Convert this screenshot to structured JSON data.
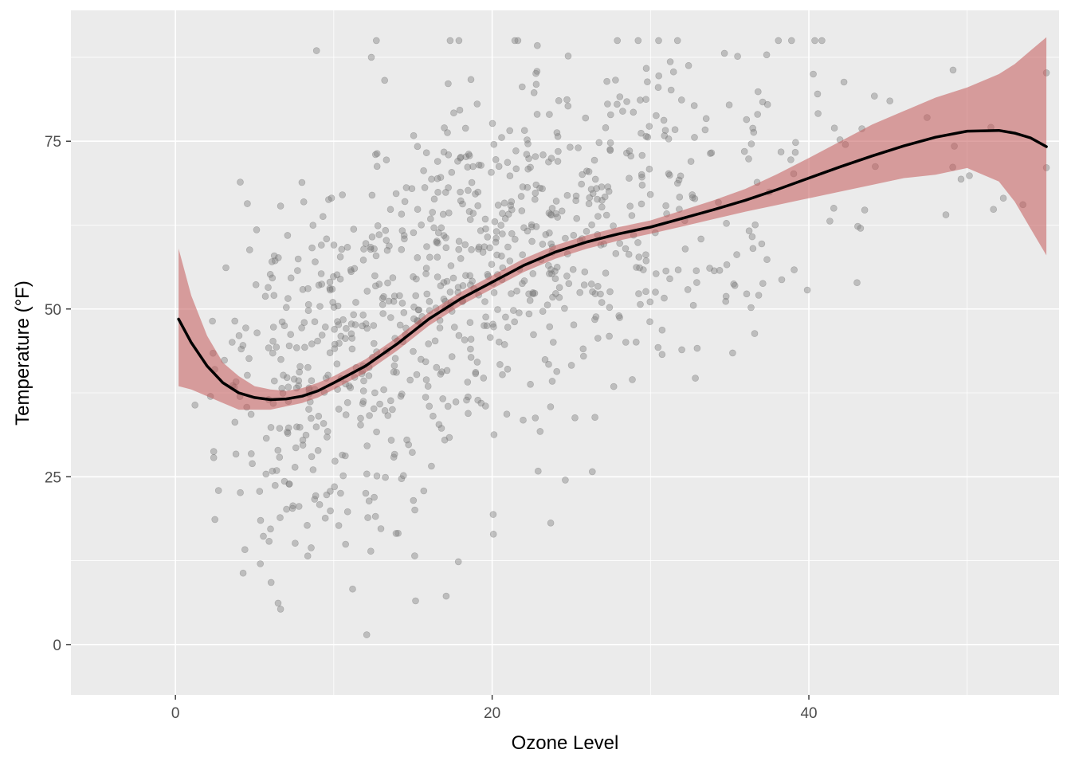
{
  "chart_data": {
    "type": "scatter",
    "xlabel": "Ozone Level",
    "ylabel": "Temperature (°F)",
    "xlim": [
      -6.6,
      55.8
    ],
    "ylim": [
      -7.5,
      94.5
    ],
    "x_ticks": [
      0,
      20,
      40
    ],
    "x_tick_labels": [
      "0",
      "20",
      "40"
    ],
    "x_minor_ticks": [
      10,
      30,
      50
    ],
    "y_ticks": [
      0,
      25,
      50,
      75
    ],
    "y_tick_labels": [
      "0",
      "25",
      "50",
      "75"
    ],
    "y_minor_ticks": [
      12.5,
      37.5,
      62.5,
      87.5
    ],
    "grid": true,
    "legend": "none",
    "colors": {
      "panel_background": "#ebebeb",
      "grid_line": "#ffffff",
      "points": "#7f7f7f",
      "smooth_line": "#000000",
      "confidence_band": "#c45a5a"
    },
    "point_seed": 20240519,
    "point_clusters": [
      {
        "count": 130,
        "x_mean": 7,
        "x_sd": 2.6,
        "y_mean": 35,
        "y_sd": 13
      },
      {
        "count": 200,
        "x_mean": 12,
        "x_sd": 3.2,
        "y_mean": 42,
        "y_sd": 15
      },
      {
        "count": 240,
        "x_mean": 18,
        "x_sd": 3.6,
        "y_mean": 55,
        "y_sd": 14
      },
      {
        "count": 200,
        "x_mean": 24,
        "x_sd": 3.6,
        "y_mean": 62,
        "y_sd": 13
      },
      {
        "count": 110,
        "x_mean": 31,
        "x_sd": 3.8,
        "y_mean": 65,
        "y_sd": 13
      },
      {
        "count": 35,
        "x_mean": 38,
        "x_sd": 2.6,
        "y_mean": 68,
        "y_sd": 16
      },
      {
        "count": 25,
        "x_mean": 47,
        "x_sd": 5.0,
        "y_mean": 73,
        "y_sd": 8
      }
    ],
    "smooth_fit": [
      {
        "x": 0.2,
        "y": 48.5,
        "lower": 38.5,
        "upper": 59
      },
      {
        "x": 1,
        "y": 45,
        "lower": 38,
        "upper": 52
      },
      {
        "x": 2,
        "y": 41.5,
        "lower": 37,
        "upper": 46
      },
      {
        "x": 3,
        "y": 39,
        "lower": 36,
        "upper": 42
      },
      {
        "x": 4,
        "y": 37.5,
        "lower": 35,
        "upper": 40
      },
      {
        "x": 5,
        "y": 36.8,
        "lower": 35,
        "upper": 38.5
      },
      {
        "x": 6,
        "y": 36.5,
        "lower": 35,
        "upper": 38
      },
      {
        "x": 7,
        "y": 36.6,
        "lower": 35.5,
        "upper": 37.8
      },
      {
        "x": 8,
        "y": 37,
        "lower": 36,
        "upper": 38.2
      },
      {
        "x": 9,
        "y": 37.8,
        "lower": 36.8,
        "upper": 39
      },
      {
        "x": 10,
        "y": 39,
        "lower": 38,
        "upper": 40
      },
      {
        "x": 12,
        "y": 41.5,
        "lower": 40.5,
        "upper": 42.5
      },
      {
        "x": 14,
        "y": 44.8,
        "lower": 43.8,
        "upper": 45.8
      },
      {
        "x": 16,
        "y": 48.5,
        "lower": 47.5,
        "upper": 49.5
      },
      {
        "x": 18,
        "y": 51.5,
        "lower": 50.5,
        "upper": 52.5
      },
      {
        "x": 20,
        "y": 54,
        "lower": 53,
        "upper": 55
      },
      {
        "x": 22,
        "y": 56.5,
        "lower": 55.5,
        "upper": 57.5
      },
      {
        "x": 24,
        "y": 58.5,
        "lower": 57.5,
        "upper": 59.5
      },
      {
        "x": 26,
        "y": 60,
        "lower": 59,
        "upper": 61
      },
      {
        "x": 28,
        "y": 61.2,
        "lower": 60.2,
        "upper": 62.2
      },
      {
        "x": 30,
        "y": 62.2,
        "lower": 61.2,
        "upper": 63.2
      },
      {
        "x": 32,
        "y": 63.5,
        "lower": 62.3,
        "upper": 64.7
      },
      {
        "x": 34,
        "y": 64.8,
        "lower": 63.4,
        "upper": 66.2
      },
      {
        "x": 36,
        "y": 66.2,
        "lower": 64.5,
        "upper": 67.9
      },
      {
        "x": 38,
        "y": 67.8,
        "lower": 65.5,
        "upper": 70.1
      },
      {
        "x": 40,
        "y": 69.5,
        "lower": 66.5,
        "upper": 72.5
      },
      {
        "x": 42,
        "y": 71.2,
        "lower": 67.5,
        "upper": 75
      },
      {
        "x": 44,
        "y": 72.8,
        "lower": 68.5,
        "upper": 77.5
      },
      {
        "x": 46,
        "y": 74.3,
        "lower": 69.5,
        "upper": 79.5
      },
      {
        "x": 48,
        "y": 75.6,
        "lower": 70,
        "upper": 81.5
      },
      {
        "x": 50,
        "y": 76.5,
        "lower": 71,
        "upper": 83
      },
      {
        "x": 52,
        "y": 76.6,
        "lower": 69,
        "upper": 85
      },
      {
        "x": 53,
        "y": 76.2,
        "lower": 66,
        "upper": 86.5
      },
      {
        "x": 54,
        "y": 75.5,
        "lower": 62,
        "upper": 88.5
      },
      {
        "x": 55,
        "y": 74.2,
        "lower": 58,
        "upper": 90.5
      }
    ]
  }
}
